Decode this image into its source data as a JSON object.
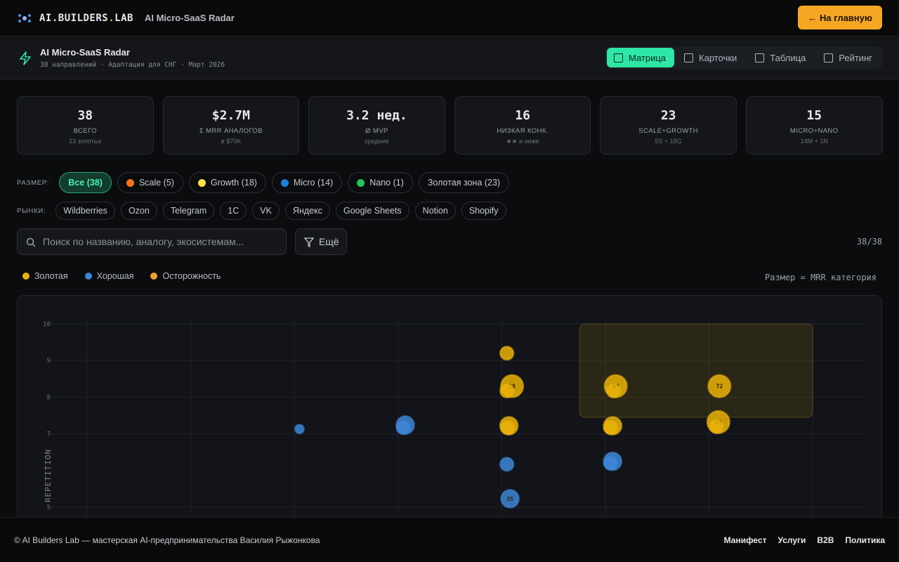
{
  "header": {
    "brand": [
      "AI",
      ".BUILDERS",
      ".",
      "LAB"
    ],
    "subtitle": "AI Micro-SaaS Radar",
    "home_button": "← На главную"
  },
  "section": {
    "title": "AI Micro-SaaS Radar",
    "subtitle": "38 направлений · Адаптация для СНГ · Март 2026",
    "tabs": [
      "Матрица",
      "Карточки",
      "Таблица",
      "Рейтинг"
    ],
    "active_tab": 0
  },
  "stats": [
    {
      "value": "38",
      "label": "ВСЕГО",
      "sub": "23 золотых"
    },
    {
      "value": "$2.7M",
      "label": "Σ MRR АНАЛОГОВ",
      "sub": "ø $70K"
    },
    {
      "value": "3.2 нед.",
      "label": "Ø MVP",
      "sub": "среднее"
    },
    {
      "value": "16",
      "label": "НИЗКАЯ КОНК.",
      "sub": "★★ и ниже"
    },
    {
      "value": "23",
      "label": "SCALE+GROWTH",
      "sub": "5S + 18G"
    },
    {
      "value": "15",
      "label": "MICRO+NANO",
      "sub": "14M + 1N"
    }
  ],
  "filters": {
    "size_label": "РАЗМЕР:",
    "size_chips": [
      {
        "label": "Все (38)",
        "color": null,
        "active": true
      },
      {
        "label": "Scale (5)",
        "color": "#f97316",
        "active": false
      },
      {
        "label": "Growth (18)",
        "color": "#fde047",
        "active": false
      },
      {
        "label": "Micro (14)",
        "color": "#1d7fe0",
        "active": false
      },
      {
        "label": "Nano (1)",
        "color": "#22c55e",
        "active": false
      },
      {
        "label": "Золотая зона (23)",
        "color": null,
        "active": false
      }
    ],
    "markets_label": "РЫНКИ:",
    "markets": [
      "Wildberries",
      "Ozon",
      "Telegram",
      "1C",
      "VK",
      "Яндекс",
      "Google Sheets",
      "Notion",
      "Shopify"
    ],
    "search_placeholder": "Поиск по названию, аналогу, экосистемам...",
    "more_button": "Ещё",
    "count": "38/38",
    "size_note": "Размер = MRR категория"
  },
  "chart_data": {
    "type": "scatter",
    "y_label": "REPETITION",
    "xlim": [
      0.5,
      8.5
    ],
    "xticks": [
      1,
      2,
      3,
      4,
      5,
      6,
      7,
      8
    ],
    "ylim": [
      4.5,
      10
    ],
    "yticks": [
      5,
      7,
      8,
      9,
      10
    ],
    "grid": true,
    "zone": {
      "xlim": [
        5.75,
        8
      ],
      "ylim": [
        7.45,
        10
      ],
      "color": "#eab308"
    },
    "series": [
      {
        "name": "Золотая",
        "color": "#eab308",
        "x": [
          5.05,
          5.1,
          5.05,
          5.07,
          5.06,
          6.1,
          6.08,
          6.07,
          6.05,
          7.1,
          7.09,
          7.07
        ],
        "values": [
          9.2,
          8.3,
          8.17,
          7.22,
          7.17,
          8.3,
          8.17,
          7.22,
          7.17,
          8.3,
          7.32,
          7.2
        ],
        "sizes": [
          2,
          4,
          2,
          3,
          2,
          4,
          2,
          3,
          2,
          4,
          4,
          2
        ],
        "scores": [
          null,
          68,
          null,
          null,
          null,
          64,
          null,
          null,
          null,
          72,
          63,
          null
        ]
      },
      {
        "name": "Хорошая",
        "color": "#3d86d6",
        "x": [
          3.05,
          4.07,
          4.05,
          5.05,
          6.07,
          6.05,
          5.08
        ],
        "values": [
          7.13,
          7.24,
          7.17,
          6.17,
          6.25,
          6.2,
          5.23
        ],
        "sizes": [
          1,
          3,
          2,
          2,
          3,
          2,
          3
        ],
        "scores": [
          null,
          null,
          null,
          null,
          null,
          null,
          35
        ]
      },
      {
        "name": "Осторожность",
        "color": "#f0a030",
        "x": [],
        "values": [],
        "sizes": [],
        "scores": []
      }
    ]
  },
  "footer": {
    "copyright": "© AI Builders Lab — мастерская AI-предпринимательства Василия Рыжонкова",
    "links": [
      "Манифест",
      "Услуги",
      "B2B",
      "Политика"
    ]
  }
}
